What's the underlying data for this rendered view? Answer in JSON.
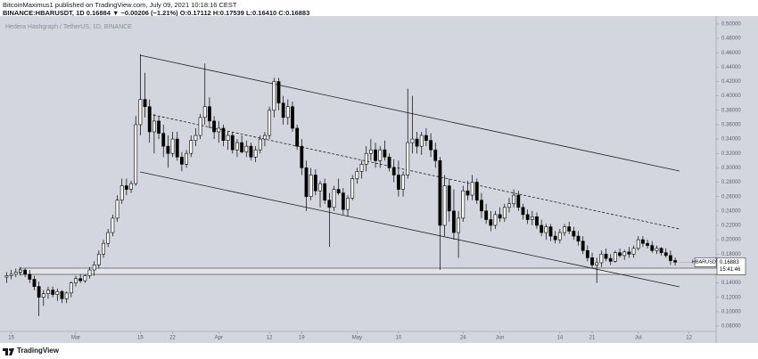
{
  "header": {
    "publisher": "BitcoinMaximus1 published on TradingView.com, July 09, 2021 10:18:16 CEST",
    "symbol_line": "BINANCE:HBARUSDT, 1D 0.16884 ▼ −0.00206 (−1.21%) O:0.17112 H:0.17539 L:0.16410 C:0.16883"
  },
  "footer": {
    "brand": "TradingView"
  },
  "chart_data": {
    "type": "candlestick",
    "title": "Hedera Hashgraph / TetherUS, 1D, BINANCE",
    "symbol_label": "HBARUSDT",
    "countdown": "15:41:46",
    "up_color": "#ffffff",
    "down_color": "#000000",
    "x": [
      0,
      1,
      2,
      3,
      4,
      5,
      6,
      7,
      8,
      9,
      10,
      11,
      12,
      13,
      14,
      15,
      16,
      17,
      18,
      19,
      20,
      21,
      22,
      23,
      24,
      25,
      26,
      27,
      28,
      29,
      30,
      31,
      32,
      33,
      34,
      35,
      36,
      37,
      38,
      39,
      40,
      41,
      42,
      43,
      44,
      45,
      46,
      47,
      48,
      49,
      50,
      51,
      52,
      53,
      54,
      55,
      56,
      57,
      58,
      59,
      60,
      61,
      62,
      63,
      64,
      65,
      66,
      67,
      68,
      69,
      70,
      71,
      72,
      73,
      74,
      75,
      76,
      77,
      78,
      79,
      80,
      81,
      82,
      83,
      84,
      85,
      86,
      87,
      88,
      89,
      90,
      91,
      92,
      93,
      94,
      95,
      96,
      97,
      98,
      99,
      100,
      101,
      102,
      103,
      104,
      105,
      106,
      107,
      108,
      109,
      110,
      111,
      112,
      113,
      114,
      115,
      116,
      117,
      118,
      119,
      120,
      121,
      122,
      123,
      124,
      125,
      126,
      127,
      128,
      129,
      130,
      131,
      132,
      133,
      134,
      135,
      136,
      137,
      138,
      139,
      140,
      141,
      142,
      143,
      144,
      145
    ],
    "open": [
      0.148,
      0.15,
      0.152,
      0.155,
      0.158,
      0.152,
      0.145,
      0.135,
      0.12,
      0.125,
      0.13,
      0.124,
      0.128,
      0.118,
      0.126,
      0.14,
      0.146,
      0.143,
      0.15,
      0.158,
      0.165,
      0.18,
      0.195,
      0.21,
      0.23,
      0.255,
      0.275,
      0.27,
      0.278,
      0.36,
      0.395,
      0.385,
      0.35,
      0.365,
      0.348,
      0.33,
      0.32,
      0.34,
      0.315,
      0.305,
      0.32,
      0.338,
      0.345,
      0.37,
      0.385,
      0.365,
      0.35,
      0.355,
      0.338,
      0.345,
      0.325,
      0.335,
      0.322,
      0.33,
      0.315,
      0.325,
      0.34,
      0.345,
      0.38,
      0.42,
      0.39,
      0.37,
      0.385,
      0.355,
      0.33,
      0.3,
      0.26,
      0.29,
      0.268,
      0.278,
      0.255,
      0.245,
      0.27,
      0.265,
      0.242,
      0.258,
      0.285,
      0.295,
      0.305,
      0.32,
      0.325,
      0.31,
      0.325,
      0.315,
      0.3,
      0.29,
      0.27,
      0.29,
      0.335,
      0.34,
      0.33,
      0.345,
      0.338,
      0.325,
      0.31,
      0.22,
      0.275,
      0.24,
      0.21,
      0.23,
      0.268,
      0.262,
      0.28,
      0.255,
      0.24,
      0.228,
      0.22,
      0.235,
      0.23,
      0.245,
      0.25,
      0.262,
      0.245,
      0.235,
      0.228,
      0.232,
      0.22,
      0.21,
      0.218,
      0.205,
      0.2,
      0.21,
      0.218,
      0.212,
      0.205,
      0.198,
      0.185,
      0.175,
      0.165,
      0.168,
      0.18,
      0.174,
      0.17,
      0.182,
      0.178,
      0.183,
      0.18,
      0.188,
      0.2,
      0.195,
      0.192,
      0.185,
      0.188,
      0.182,
      0.178,
      0.17112
    ],
    "high": [
      0.155,
      0.158,
      0.16,
      0.162,
      0.16,
      0.158,
      0.15,
      0.142,
      0.13,
      0.135,
      0.135,
      0.132,
      0.13,
      0.128,
      0.142,
      0.15,
      0.152,
      0.152,
      0.162,
      0.17,
      0.185,
      0.2,
      0.215,
      0.235,
      0.262,
      0.285,
      0.285,
      0.282,
      0.372,
      0.458,
      0.432,
      0.395,
      0.375,
      0.372,
      0.36,
      0.345,
      0.35,
      0.35,
      0.322,
      0.325,
      0.345,
      0.355,
      0.375,
      0.445,
      0.398,
      0.372,
      0.365,
      0.36,
      0.35,
      0.35,
      0.34,
      0.345,
      0.338,
      0.335,
      0.33,
      0.345,
      0.35,
      0.385,
      0.425,
      0.425,
      0.4,
      0.395,
      0.392,
      0.36,
      0.34,
      0.31,
      0.3,
      0.298,
      0.282,
      0.285,
      0.265,
      0.275,
      0.285,
      0.272,
      0.262,
      0.29,
      0.3,
      0.31,
      0.33,
      0.34,
      0.335,
      0.33,
      0.338,
      0.32,
      0.312,
      0.31,
      0.295,
      0.41,
      0.4,
      0.35,
      0.35,
      0.355,
      0.348,
      0.335,
      0.315,
      0.29,
      0.285,
      0.27,
      0.24,
      0.275,
      0.282,
      0.29,
      0.285,
      0.265,
      0.25,
      0.24,
      0.24,
      0.245,
      0.25,
      0.258,
      0.27,
      0.268,
      0.25,
      0.242,
      0.24,
      0.238,
      0.228,
      0.222,
      0.222,
      0.212,
      0.215,
      0.222,
      0.225,
      0.218,
      0.212,
      0.205,
      0.192,
      0.182,
      0.175,
      0.185,
      0.188,
      0.18,
      0.185,
      0.188,
      0.186,
      0.19,
      0.192,
      0.205,
      0.205,
      0.2,
      0.198,
      0.192,
      0.19,
      0.188,
      0.185,
      0.17539
    ],
    "low": [
      0.14,
      0.145,
      0.148,
      0.15,
      0.148,
      0.14,
      0.13,
      0.094,
      0.108,
      0.118,
      0.12,
      0.115,
      0.112,
      0.112,
      0.12,
      0.135,
      0.14,
      0.14,
      0.146,
      0.15,
      0.16,
      0.175,
      0.19,
      0.205,
      0.225,
      0.25,
      0.262,
      0.265,
      0.275,
      0.345,
      0.37,
      0.335,
      0.32,
      0.34,
      0.315,
      0.3,
      0.315,
      0.31,
      0.295,
      0.3,
      0.315,
      0.33,
      0.34,
      0.36,
      0.355,
      0.34,
      0.335,
      0.33,
      0.325,
      0.32,
      0.315,
      0.32,
      0.315,
      0.31,
      0.308,
      0.32,
      0.33,
      0.34,
      0.37,
      0.38,
      0.36,
      0.36,
      0.35,
      0.325,
      0.29,
      0.24,
      0.255,
      0.262,
      0.245,
      0.25,
      0.19,
      0.24,
      0.262,
      0.235,
      0.232,
      0.255,
      0.278,
      0.285,
      0.295,
      0.31,
      0.3,
      0.3,
      0.31,
      0.295,
      0.28,
      0.26,
      0.26,
      0.285,
      0.32,
      0.32,
      0.318,
      0.33,
      0.315,
      0.3,
      0.158,
      0.205,
      0.225,
      0.2,
      0.175,
      0.225,
      0.255,
      0.255,
      0.25,
      0.23,
      0.222,
      0.212,
      0.215,
      0.225,
      0.225,
      0.238,
      0.245,
      0.24,
      0.228,
      0.222,
      0.22,
      0.215,
      0.205,
      0.2,
      0.198,
      0.195,
      0.195,
      0.205,
      0.208,
      0.2,
      0.192,
      0.18,
      0.17,
      0.16,
      0.14,
      0.162,
      0.17,
      0.165,
      0.168,
      0.175,
      0.172,
      0.175,
      0.175,
      0.185,
      0.19,
      0.188,
      0.182,
      0.18,
      0.178,
      0.175,
      0.165,
      0.1641
    ],
    "close": [
      0.15,
      0.152,
      0.155,
      0.158,
      0.152,
      0.145,
      0.135,
      0.12,
      0.125,
      0.13,
      0.124,
      0.128,
      0.118,
      0.126,
      0.14,
      0.146,
      0.143,
      0.15,
      0.158,
      0.165,
      0.18,
      0.195,
      0.21,
      0.23,
      0.255,
      0.275,
      0.27,
      0.278,
      0.36,
      0.395,
      0.385,
      0.35,
      0.365,
      0.348,
      0.33,
      0.32,
      0.34,
      0.315,
      0.305,
      0.32,
      0.338,
      0.345,
      0.37,
      0.385,
      0.365,
      0.35,
      0.355,
      0.338,
      0.345,
      0.325,
      0.335,
      0.322,
      0.33,
      0.315,
      0.325,
      0.34,
      0.345,
      0.38,
      0.42,
      0.39,
      0.37,
      0.385,
      0.355,
      0.33,
      0.3,
      0.26,
      0.29,
      0.268,
      0.278,
      0.255,
      0.245,
      0.27,
      0.265,
      0.242,
      0.258,
      0.285,
      0.295,
      0.305,
      0.32,
      0.325,
      0.31,
      0.325,
      0.315,
      0.3,
      0.29,
      0.27,
      0.29,
      0.335,
      0.34,
      0.33,
      0.345,
      0.338,
      0.325,
      0.31,
      0.22,
      0.275,
      0.24,
      0.21,
      0.23,
      0.268,
      0.262,
      0.28,
      0.255,
      0.24,
      0.228,
      0.22,
      0.235,
      0.23,
      0.245,
      0.25,
      0.262,
      0.245,
      0.235,
      0.228,
      0.232,
      0.22,
      0.21,
      0.218,
      0.205,
      0.2,
      0.21,
      0.218,
      0.212,
      0.205,
      0.198,
      0.185,
      0.175,
      0.165,
      0.168,
      0.18,
      0.174,
      0.17,
      0.182,
      0.178,
      0.183,
      0.18,
      0.188,
      0.2,
      0.195,
      0.192,
      0.185,
      0.188,
      0.182,
      0.178,
      0.171,
      0.16883
    ],
    "xlim": [
      -1.44,
      153.88
    ],
    "xticks": [
      {
        "value": 1,
        "label": "15"
      },
      {
        "value": 15,
        "label": "Mar"
      },
      {
        "value": 29,
        "label": "15"
      },
      {
        "value": 36,
        "label": "22"
      },
      {
        "value": 46,
        "label": "Apr"
      },
      {
        "value": 57,
        "label": "12"
      },
      {
        "value": 64,
        "label": "19"
      },
      {
        "value": 76,
        "label": "May"
      },
      {
        "value": 85,
        "label": "10"
      },
      {
        "value": 99,
        "label": "24"
      },
      {
        "value": 107,
        "label": "Jun"
      },
      {
        "value": 120,
        "label": "14"
      },
      {
        "value": 127,
        "label": "21"
      },
      {
        "value": 137,
        "label": "Jul"
      },
      {
        "value": 148,
        "label": "12"
      }
    ],
    "ylim": [
      0.0726,
      0.511
    ],
    "yticks": [
      {
        "value": 0.08,
        "label": "0.08000"
      },
      {
        "value": 0.1,
        "label": "0.10000"
      },
      {
        "value": 0.12,
        "label": "0.12000"
      },
      {
        "value": 0.14,
        "label": "0.14000"
      },
      {
        "value": 0.16,
        "label": "0.16000"
      },
      {
        "value": 0.18,
        "label": "0.18000"
      },
      {
        "value": 0.2,
        "label": "0.20000"
      },
      {
        "value": 0.22,
        "label": "0.22000"
      },
      {
        "value": 0.24,
        "label": "0.24000"
      },
      {
        "value": 0.26,
        "label": "0.26000"
      },
      {
        "value": 0.28,
        "label": "0.28000"
      },
      {
        "value": 0.3,
        "label": "0.30000"
      },
      {
        "value": 0.32,
        "label": "0.32000"
      },
      {
        "value": 0.34,
        "label": "0.34000"
      },
      {
        "value": 0.36,
        "label": "0.36000"
      },
      {
        "value": 0.38,
        "label": "0.38000"
      },
      {
        "value": 0.4,
        "label": "0.40000"
      },
      {
        "value": 0.42,
        "label": "0.42000"
      },
      {
        "value": 0.44,
        "label": "0.44000"
      },
      {
        "value": 0.46,
        "label": "0.46000"
      },
      {
        "value": 0.48,
        "label": "0.48000"
      },
      {
        "value": 0.5,
        "label": "0.50000"
      }
    ],
    "grid": false
  }
}
